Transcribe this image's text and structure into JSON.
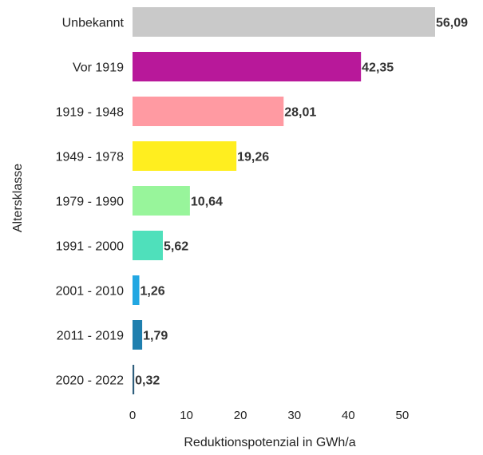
{
  "chart_data": {
    "type": "bar",
    "orientation": "horizontal",
    "categories": [
      "Unbekannt",
      "Vor 1919",
      "1919 - 1948",
      "1949 - 1978",
      "1979 - 1990",
      "1991 - 2000",
      "2001 - 2010",
      "2011 - 2019",
      "2020 - 2022"
    ],
    "values": [
      56.09,
      42.35,
      28.01,
      19.26,
      10.64,
      5.62,
      1.26,
      1.79,
      0.32
    ],
    "value_labels": [
      "56,09",
      "42,35",
      "28,01",
      "19,26",
      "10,64",
      "5,62",
      "1,26",
      "1,79",
      "0,32"
    ],
    "colors": [
      "#c9c9c9",
      "#b8189a",
      "#ff9aa2",
      "#ffee1f",
      "#98f59b",
      "#4fe0bb",
      "#22a7e2",
      "#1f7fae",
      "#2f5f7d"
    ],
    "xlabel": "Reduktionspotenzial in GWh/a",
    "ylabel": "Altersklasse",
    "xlim": [
      0,
      56.09
    ],
    "xticks": [
      0,
      10,
      20,
      30,
      40,
      50
    ],
    "xtick_labels": [
      "0",
      "10",
      "20",
      "30",
      "40",
      "50"
    ],
    "grid": false,
    "legend": false
  }
}
